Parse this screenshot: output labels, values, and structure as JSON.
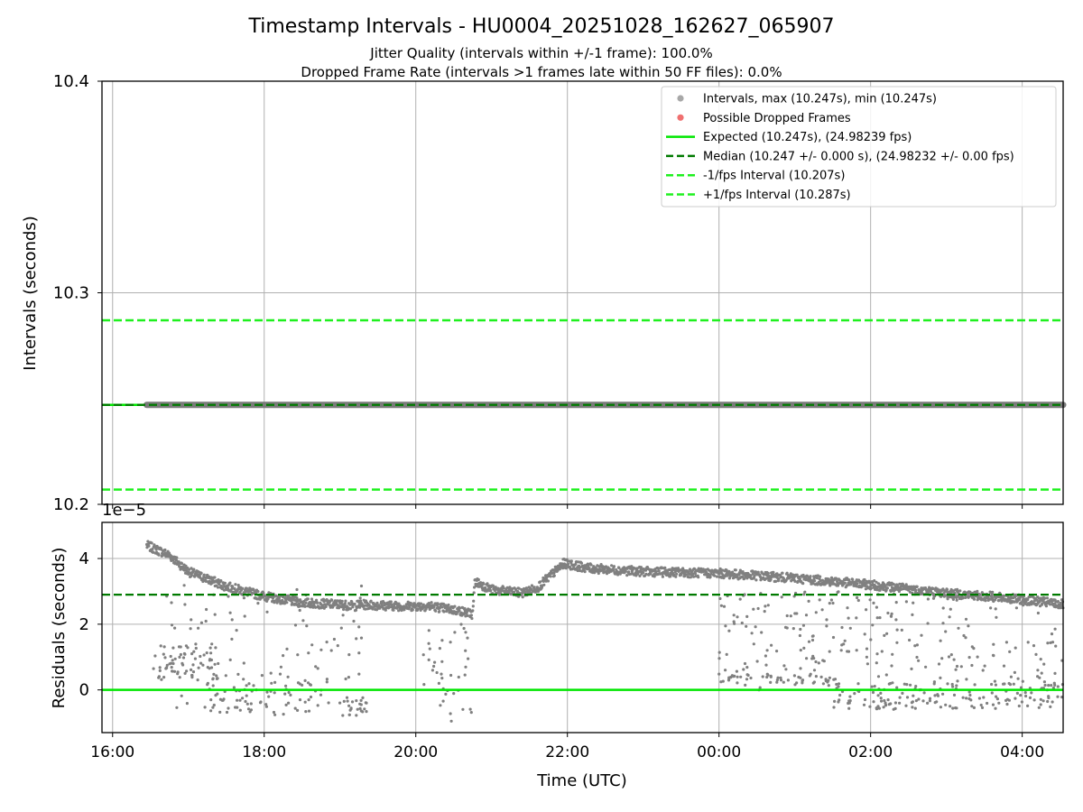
{
  "title": "Timestamp Intervals - HU0004_20251028_162627_065907",
  "subtitle_1": "Jitter Quality (intervals within +/-1 frame): 100.0%",
  "subtitle_2": "Dropped Frame Rate (intervals >1 frames late within 50 FF files): 0.0%",
  "colors": {
    "points": "#808080",
    "dropped": "#f07070",
    "expected": "#00e600",
    "median": "#007a00",
    "fps_band": "#1ef01e",
    "grid": "#b0b0b0"
  },
  "chart_data": [
    {
      "type": "scatter",
      "panel": "intervals",
      "ylabel": "Intervals (seconds)",
      "ylim": [
        10.2,
        10.4
      ],
      "yticks": [
        10.2,
        10.3,
        10.4
      ],
      "ytick_labels": [
        "10.2",
        "10.3",
        "10.4"
      ],
      "xlim_hours": [
        15.86,
        28.54
      ],
      "grid": true,
      "legend_position": "top-right",
      "legend": [
        {
          "label": "Intervals, max (10.247s), min (10.247s)",
          "kind": "dot",
          "color": "#a8a8a8"
        },
        {
          "label": "Possible Dropped Frames",
          "kind": "dot",
          "color": "#f07070"
        },
        {
          "label": "Expected (10.247s), (24.98239 fps)",
          "kind": "solid",
          "color": "#00e600"
        },
        {
          "label": "Median (10.247 +/- 0.000 s), (24.98232 +/- 0.00 fps)",
          "kind": "dashed",
          "color": "#007a00"
        },
        {
          "label": "-1/fps Interval (10.207s)",
          "kind": "dashed",
          "color": "#1ef01e"
        },
        {
          "label": "+1/fps Interval (10.287s)",
          "kind": "dashed",
          "color": "#1ef01e"
        }
      ],
      "lines": {
        "expected": 10.247,
        "median": 10.247,
        "minus_fps": 10.207,
        "plus_fps": 10.287
      },
      "interval_series": {
        "x_start_hours": 16.45,
        "x_end_hours": 28.54,
        "value": 10.247
      }
    },
    {
      "type": "scatter",
      "panel": "residuals",
      "ylabel": "Residuals (seconds)",
      "xlabel": "Time (UTC)",
      "offset_label": "1e−5",
      "ylim": [
        -1.3,
        5.1
      ],
      "yticks": [
        0,
        2,
        4
      ],
      "ytick_labels": [
        "0",
        "2",
        "4"
      ],
      "xticks_hours": [
        16,
        18,
        20,
        22,
        24,
        26,
        28
      ],
      "xtick_labels": [
        "16:00",
        "18:00",
        "20:00",
        "22:00",
        "00:00",
        "02:00",
        "04:00"
      ],
      "xlim_hours": [
        15.86,
        28.54
      ],
      "grid": true,
      "lines": {
        "zero": 0,
        "median": 2.9
      },
      "main_trend": [
        [
          16.45,
          4.4
        ],
        [
          16.75,
          4.1
        ],
        [
          17.0,
          3.6
        ],
        [
          17.5,
          3.15
        ],
        [
          18.0,
          2.85
        ],
        [
          18.5,
          2.65
        ],
        [
          19.0,
          2.6
        ],
        [
          19.2,
          2.55
        ],
        [
          19.25,
          2.6
        ],
        [
          19.8,
          2.55
        ],
        [
          20.2,
          2.55
        ],
        [
          20.6,
          2.4
        ],
        [
          20.75,
          2.3
        ],
        [
          20.78,
          3.3
        ],
        [
          21.0,
          3.05
        ],
        [
          21.4,
          2.95
        ],
        [
          21.6,
          3.1
        ],
        [
          21.95,
          3.85
        ],
        [
          22.3,
          3.7
        ],
        [
          23.0,
          3.6
        ],
        [
          24.0,
          3.55
        ],
        [
          25.0,
          3.4
        ],
        [
          26.0,
          3.2
        ],
        [
          27.0,
          2.95
        ],
        [
          28.0,
          2.75
        ],
        [
          28.54,
          2.6
        ]
      ],
      "scatter_cloud": [
        {
          "x0": 16.5,
          "x1": 17.4,
          "y0": 0.3,
          "y1": 1.4,
          "count": 70
        },
        {
          "x0": 16.7,
          "x1": 19.3,
          "y0": -0.8,
          "y1": 3.2,
          "count": 110
        },
        {
          "x0": 17.2,
          "x1": 18.8,
          "y0": -0.7,
          "y1": 0.3,
          "count": 60
        },
        {
          "x0": 19.0,
          "x1": 19.35,
          "y0": -0.8,
          "y1": -0.2,
          "count": 25
        },
        {
          "x0": 20.1,
          "x1": 20.75,
          "y0": -1.0,
          "y1": 2.0,
          "count": 40
        },
        {
          "x0": 24.0,
          "x1": 28.54,
          "y0": 0.0,
          "y1": 3.0,
          "count": 260
        },
        {
          "x0": 24.0,
          "x1": 25.5,
          "y0": 0.2,
          "y1": 0.5,
          "count": 40
        },
        {
          "x0": 25.5,
          "x1": 28.54,
          "y0": -0.6,
          "y1": 0.2,
          "count": 150
        }
      ]
    }
  ]
}
